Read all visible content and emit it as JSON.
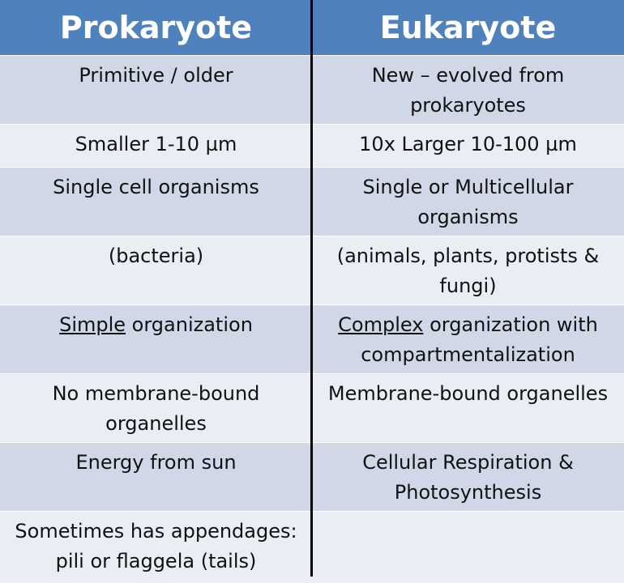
{
  "headers": {
    "left": "Prokaryote",
    "right": "Eukaryote"
  },
  "rows": [
    {
      "left": [
        "Primitive / older"
      ],
      "right": [
        "New – evolved from",
        "prokaryotes"
      ]
    },
    {
      "left": [
        "Smaller 1-10 µm"
      ],
      "right": [
        "10x Larger 10-100 µm"
      ]
    },
    {
      "left": [
        "Single cell organisms"
      ],
      "right": [
        "Single or Multicellular",
        "organisms"
      ]
    },
    {
      "left": [
        "(bacteria)"
      ],
      "right": [
        "(animals, plants, protists &",
        "fungi)"
      ]
    },
    {
      "left_u": "Simple",
      "left_rest": " organization",
      "right_u": "Complex",
      "right_rest": " organization with",
      "right_line2": "compartmentalization"
    },
    {
      "left": [
        "No membrane-bound",
        "organelles"
      ],
      "right": [
        "Membrane-bound organelles"
      ]
    },
    {
      "left": [
        "Energy from sun"
      ],
      "right": [
        "Cellular Respiration &",
        "Photosynthesis"
      ]
    },
    {
      "left": [
        "Sometimes has appendages:",
        "pili or flaggela (tails)"
      ],
      "right": []
    }
  ],
  "colors": {
    "header": "#4f81bd",
    "row_dark": "#d0d8e8",
    "row_light": "#e9edf4",
    "divider": "#000000"
  }
}
